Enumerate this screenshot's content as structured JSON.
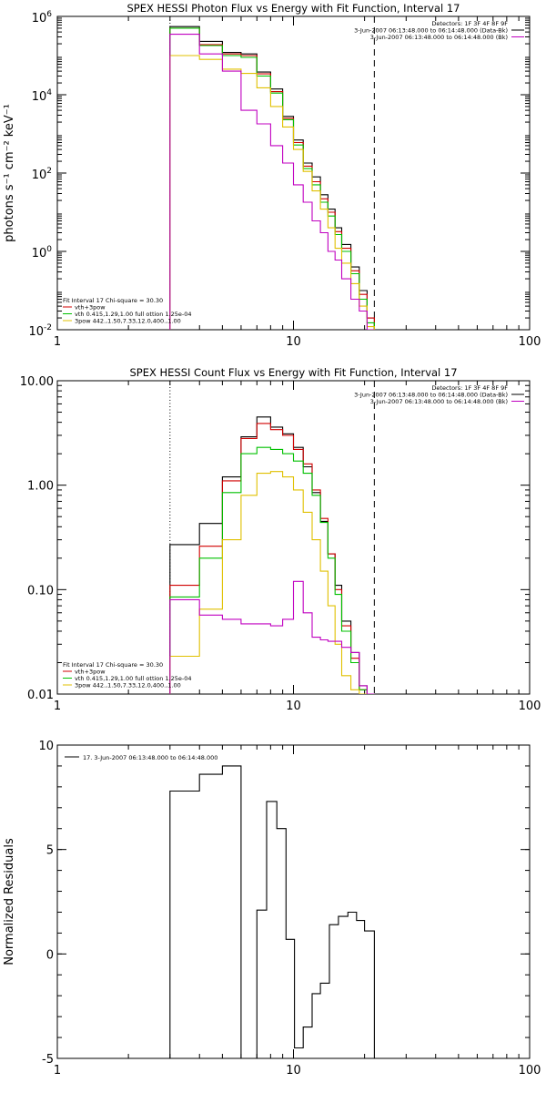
{
  "chart_data": [
    {
      "type": "line",
      "title": "SPEX HESSI Photon Flux vs Energy with Fit Function, Interval 17",
      "xlabel": "",
      "ylabel": "photons s⁻¹ cm⁻² keV⁻¹",
      "xscale": "log",
      "yscale": "log",
      "xlim": [
        1,
        100
      ],
      "ylim": [
        0.01,
        1000000
      ],
      "x_ticks": [
        {
          "v": 1,
          "label": "1"
        },
        {
          "v": 10,
          "label": "10"
        },
        {
          "v": 100,
          "label": "100"
        }
      ],
      "y_ticks": [
        {
          "v": 0.01,
          "base": "10",
          "exp": "-2"
        },
        {
          "v": 1,
          "base": "10",
          "exp": "0"
        },
        {
          "v": 100,
          "base": "10",
          "exp": "2"
        },
        {
          "v": 10000,
          "base": "10",
          "exp": "4"
        },
        {
          "v": 1000000,
          "base": "10",
          "exp": "6"
        }
      ],
      "grid": false,
      "legend_top": [
        "Detectors: 1F 3F 4F 8F 9F",
        "3-Jun-2007 06:13:48.000 to 06:14:48.000 (Data-Bk)",
        "3-Jun-2007 06:13:48.000 to 06:14:48.000 (Bk)"
      ],
      "legend_top_colors": [
        "",
        "#000000",
        "#c000c0"
      ],
      "legend_bottom": [
        "Fit Interval 17    Chi-square = 30.30",
        "vth+3pow",
        "vth 0.415,1.29,1.00  full ottion 1.25e-04",
        "3pow 442.,1.50,7.33,12.0,400.,1.00"
      ],
      "legend_bottom_colors": [
        "",
        "#d00000",
        "#00c000",
        "#e0c000"
      ],
      "edges": [
        3,
        4,
        5,
        6,
        7,
        8,
        9,
        10,
        11,
        12,
        13,
        14,
        15,
        16,
        17.5,
        19,
        20.5,
        22
      ],
      "vlines": [
        {
          "x": 3,
          "style": "dotted"
        },
        {
          "x": 22,
          "style": "dashed"
        }
      ],
      "series": [
        {
          "name": "Data-Bk",
          "color": "#000000",
          "values": [
            550000,
            230000,
            120000,
            110000,
            38000,
            14000,
            2800,
            700,
            180,
            80,
            28,
            12,
            4,
            1.5,
            0.4,
            0.1,
            0.02
          ]
        },
        {
          "name": "",
          "color": "#d00000",
          "values": [
            500000,
            190000,
            110000,
            100000,
            34000,
            12000,
            2500,
            600,
            150,
            60,
            22,
            10,
            3.2,
            1.2,
            0.32,
            0.08,
            0.02
          ]
        },
        {
          "name": "",
          "color": "#00c000",
          "values": [
            500000,
            180000,
            100000,
            90000,
            30000,
            11000,
            2300,
            520,
            130,
            50,
            18,
            8,
            2.7,
            1,
            0.27,
            0.06,
            0.015
          ]
        },
        {
          "name": "",
          "color": "#e0c000",
          "values": [
            100000,
            80000,
            45000,
            35000,
            15000,
            5000,
            1500,
            400,
            110,
            35,
            12,
            4,
            1.2,
            0.5,
            0.15,
            0.04,
            0.012
          ]
        },
        {
          "name": "Bk",
          "color": "#c000c0",
          "values": [
            350000,
            110000,
            40000,
            4000,
            1800,
            500,
            180,
            50,
            18,
            6,
            3,
            1,
            0.6,
            0.2,
            0.06,
            0.03,
            0.01
          ]
        }
      ]
    },
    {
      "type": "line",
      "title": "SPEX HESSI Count Flux vs Energy with Fit Function, Interval 17",
      "xlabel": "",
      "ylabel": "",
      "xscale": "log",
      "yscale": "log",
      "xlim": [
        1,
        100
      ],
      "ylim": [
        0.01,
        10
      ],
      "x_ticks": [
        {
          "v": 1,
          "label": "1"
        },
        {
          "v": 10,
          "label": "10"
        },
        {
          "v": 100,
          "label": "100"
        }
      ],
      "y_ticks": [
        {
          "v": 0.01,
          "label": "0.01"
        },
        {
          "v": 0.1,
          "label": "0.10"
        },
        {
          "v": 1,
          "label": "1.00"
        },
        {
          "v": 10,
          "label": "10.00"
        }
      ],
      "grid": false,
      "legend_top": [
        "Detectors: 1F 3F 4F 8F 9F",
        "3-Jun-2007 06:13:48.000 to 06:14:48.000 (Data-Bk)",
        "3-Jun-2007 06:13:48.000 to 06:14:48.000 (Bk)"
      ],
      "legend_top_colors": [
        "",
        "#000000",
        "#c000c0"
      ],
      "legend_bottom": [
        "Fit Interval 17    Chi-square = 30.30",
        "vth+3pow",
        "vth 0.415,1.29,1.00  full ottion 1.25e-04",
        "3pow 442.,1.50,7.33,12.0,400.,1.00"
      ],
      "legend_bottom_colors": [
        "",
        "#d00000",
        "#00c000",
        "#e0c000"
      ],
      "edges": [
        3,
        4,
        5,
        6,
        7,
        8,
        9,
        10,
        11,
        12,
        13,
        14,
        15,
        16,
        17.5,
        19,
        20.5,
        22
      ],
      "vlines": [
        {
          "x": 3,
          "style": "dotted"
        },
        {
          "x": 22,
          "style": "dashed"
        }
      ],
      "series": [
        {
          "name": "Data-Bk",
          "color": "#000000",
          "values": [
            0.27,
            0.43,
            1.2,
            2.9,
            4.5,
            3.6,
            3.1,
            2.3,
            1.5,
            0.85,
            0.45,
            0.22,
            0.11,
            0.05,
            0.025,
            0.012,
            0.01
          ]
        },
        {
          "name": "",
          "color": "#d00000",
          "values": [
            0.11,
            0.26,
            1.1,
            2.8,
            3.9,
            3.4,
            3.0,
            2.2,
            1.6,
            0.9,
            0.48,
            0.22,
            0.1,
            0.045,
            0.022,
            0.011,
            0.01
          ]
        },
        {
          "name": "",
          "color": "#00c000",
          "values": [
            0.085,
            0.2,
            0.85,
            2.0,
            2.3,
            2.2,
            2.0,
            1.7,
            1.3,
            0.8,
            0.44,
            0.2,
            0.09,
            0.04,
            0.02,
            0.011,
            0.01
          ]
        },
        {
          "name": "",
          "color": "#e0c000",
          "values": [
            0.023,
            0.065,
            0.3,
            0.8,
            1.3,
            1.35,
            1.2,
            0.9,
            0.55,
            0.3,
            0.15,
            0.07,
            0.03,
            0.015,
            0.011,
            0.01,
            0.01
          ]
        },
        {
          "name": "Bk",
          "color": "#c000c0",
          "values": [
            0.08,
            0.057,
            0.052,
            0.047,
            0.047,
            0.045,
            0.052,
            0.12,
            0.06,
            0.035,
            0.033,
            0.032,
            0.032,
            0.028,
            0.025,
            0.012,
            0.01
          ]
        }
      ]
    },
    {
      "type": "line",
      "title": "",
      "xlabel": "",
      "ylabel": "Normalized Residuals",
      "xscale": "log",
      "yscale": "linear",
      "xlim": [
        1,
        100
      ],
      "ylim": [
        -5,
        10
      ],
      "x_ticks": [
        {
          "v": 1,
          "label": "1"
        },
        {
          "v": 10,
          "label": "10"
        },
        {
          "v": 100,
          "label": "100"
        }
      ],
      "y_ticks": [
        {
          "v": -5,
          "label": "-5"
        },
        {
          "v": 0,
          "label": "0"
        },
        {
          "v": 5,
          "label": "5"
        },
        {
          "v": 10,
          "label": "10"
        }
      ],
      "grid": false,
      "legend_top": [
        "17.  3-Jun-2007 06:13:48.000 to 06:14:48.000"
      ],
      "legend_top_colors": [
        "#000000"
      ],
      "legend_bottom": [],
      "legend_bottom_colors": [],
      "edges": [
        3,
        4,
        5,
        6,
        7,
        7.7,
        8.5,
        9.3,
        10.1,
        11,
        12,
        13,
        14.2,
        15.5,
        17,
        18.5,
        20,
        22
      ],
      "vlines": [],
      "series": [
        {
          "name": "17.  3-Jun-2007 06:13:48.000 to 06:14:48.000",
          "color": "#000000",
          "values": [
            7.8,
            8.6,
            9.0,
            -5.0,
            2.1,
            7.3,
            6.0,
            0.7,
            -4.5,
            -3.5,
            -1.9,
            -1.4,
            1.4,
            1.8,
            2.0,
            1.6,
            1.1
          ]
        }
      ]
    }
  ]
}
